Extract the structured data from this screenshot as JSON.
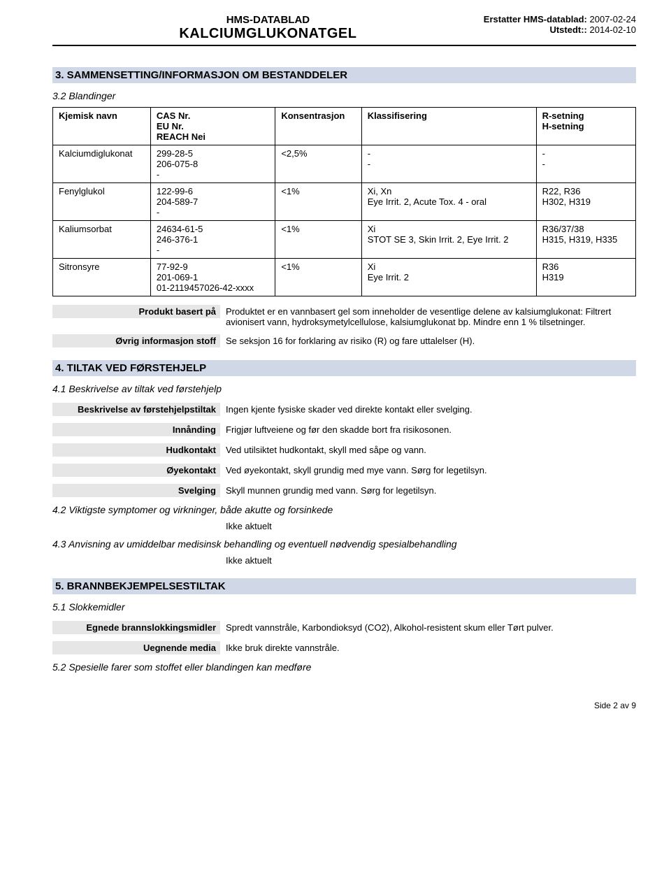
{
  "header": {
    "hms": "HMS-DATABLAD",
    "title": "KALCIUMGLUKONATGEL",
    "replaces_label": "Erstatter HMS-datablad:",
    "replaces_date": "2007-02-24",
    "issued_label": "Utstedt::",
    "issued_date": "2014-02-10"
  },
  "section3": {
    "heading": "3. SAMMENSETTING/INFORMASJON OM BESTANDDELER",
    "sub": "3.2 Blandinger",
    "columns": {
      "name": "Kjemisk navn",
      "ids": "CAS Nr.\nEU Nr.\nREACH Nei",
      "conc": "Konsentrasjon",
      "class": "Klassifisering",
      "rh": "R-setning\nH-setning"
    },
    "rows": [
      {
        "name": "Kalciumdiglukonat",
        "ids": "299-28-5\n206-075-8\n-",
        "conc": "<2,5%",
        "class": "-\n-",
        "rh": "-\n-"
      },
      {
        "name": "Fenylglukol",
        "ids": "122-99-6\n204-589-7\n-",
        "conc": "<1%",
        "class": "Xi, Xn\nEye Irrit. 2, Acute Tox. 4 - oral",
        "rh": "R22, R36\nH302, H319"
      },
      {
        "name": "Kaliumsorbat",
        "ids": "24634-61-5\n246-376-1\n-",
        "conc": "<1%",
        "class": "Xi\nSTOT SE 3, Skin Irrit. 2, Eye Irrit. 2",
        "rh": "R36/37/38\nH315, H319, H335"
      },
      {
        "name": "Sitronsyre",
        "ids": "77-92-9\n201-069-1\n01-2119457026-42-xxxx",
        "conc": "<1%",
        "class": "Xi\nEye Irrit. 2",
        "rh": "R36\nH319"
      }
    ],
    "kv": [
      {
        "k": "Produkt basert på",
        "v": "Produktet er en vannbasert gel som inneholder de vesentlige delene av kalsiumglukonat: Filtrert avionisert vann, hydroksymetylcellulose, kalsiumglukonat bp. Mindre enn 1 % tilsetninger."
      },
      {
        "k": "Øvrig informasjon stoff",
        "v": "Se seksjon 16 for forklaring av risiko (R) og fare uttalelser (H)."
      }
    ]
  },
  "section4": {
    "heading": "4. TILTAK VED FØRSTEHJELP",
    "sub1": "4.1 Beskrivelse av tiltak ved førstehjelp",
    "kv": [
      {
        "k": "Beskrivelse av førstehjelpstiltak",
        "v": "Ingen kjente fysiske skader ved direkte kontakt eller svelging."
      },
      {
        "k": "Innånding",
        "v": "Frigjør luftveiene og før den skadde bort fra risikosonen."
      },
      {
        "k": "Hudkontakt",
        "v": "Ved utilsiktet hudkontakt, skyll med såpe og vann."
      },
      {
        "k": "Øyekontakt",
        "v": "Ved øyekontakt, skyll grundig med mye vann. Sørg for legetilsyn."
      },
      {
        "k": "Svelging",
        "v": "Skyll munnen grundig med vann. Sørg for legetilsyn."
      }
    ],
    "sub2": "4.2 Viktigste symptomer og virkninger, både akutte og forsinkede",
    "val2": "Ikke aktuelt",
    "sub3": "4.3 Anvisning av umiddelbar medisinsk behandling og eventuell nødvendig spesialbehandling",
    "val3": "Ikke aktuelt"
  },
  "section5": {
    "heading": "5. BRANNBEKJEMPELSESTILTAK",
    "sub1": "5.1 Slokkemidler",
    "kv": [
      {
        "k": "Egnede brannslokkingsmidler",
        "v": "Spredt vannstråle, Karbondioksyd (CO2), Alkohol-resistent skum eller Tørt pulver."
      },
      {
        "k": "Uegnende media",
        "v": "Ikke bruk direkte vannstråle."
      }
    ],
    "sub2": "5.2 Spesielle farer som stoffet eller blandingen kan medføre"
  },
  "footer": "Side 2 av 9"
}
